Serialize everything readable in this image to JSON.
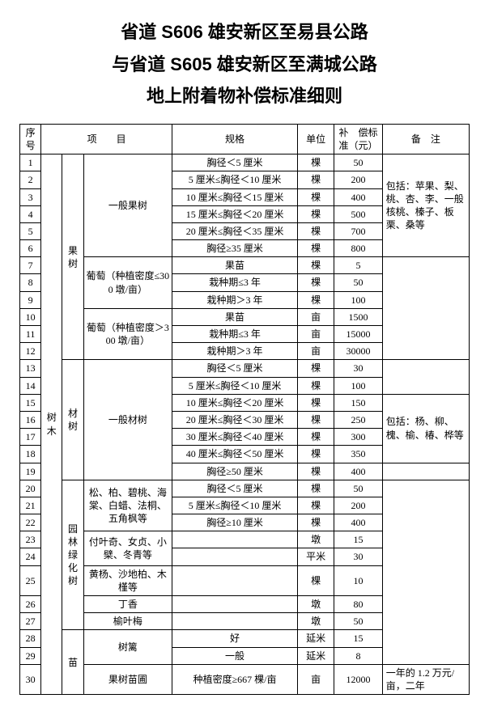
{
  "title_lines": [
    "省道 S606 雄安新区至易县公路",
    "与省道 S605 雄安新区至满城公路",
    "地上附着物补偿标准细则"
  ],
  "headers": {
    "seq": "序号",
    "item": "项　　目",
    "spec": "规格",
    "unit": "单位",
    "std": "补　偿标准（元）",
    "note": "备　注"
  },
  "cat1_tree": "树木",
  "cat2": {
    "fruit": "果树",
    "timber": "材树",
    "garden": "园林绿化树",
    "nursery": "苗"
  },
  "cat3": {
    "gen_fruit": "一般果树",
    "grape_low": "葡萄（种植密度≤300 墩/亩）",
    "grape_high": "葡萄（种植密度＞300 墩/亩）",
    "gen_timber": "一般材树",
    "pine_etc": "松、柏、碧桃、海棠、白蜡、法桐、五角枫等",
    "fuye": "付叶奇、女贞、小檗、冬青等",
    "huangyang": "黄杨、沙地柏、木槿等",
    "dingxiang": "丁香",
    "yuyemei": "榆叶梅",
    "shuli": "树篱",
    "fruit_nursery": "果树苗圃"
  },
  "notes": {
    "fruit": "包括：苹果、梨、桃、杏、李、一般核桃、榛子、板栗、桑等",
    "timber": "包括：杨、柳、槐、榆、椿、桦等",
    "nursery": "一年的 1.2 万元/亩，二年"
  },
  "rows": {
    "r1": {
      "seq": "1",
      "spec": "胸径＜5 厘米",
      "unit": "棵",
      "std": "50"
    },
    "r2": {
      "seq": "2",
      "spec": "5 厘米≤胸径＜10 厘米",
      "unit": "棵",
      "std": "200"
    },
    "r3": {
      "seq": "3",
      "spec": "10 厘米≤胸径＜15 厘米",
      "unit": "棵",
      "std": "400"
    },
    "r4": {
      "seq": "4",
      "spec": "15 厘米≤胸径＜20 厘米",
      "unit": "棵",
      "std": "500"
    },
    "r5": {
      "seq": "5",
      "spec": "20 厘米≤胸径＜35 厘米",
      "unit": "棵",
      "std": "700"
    },
    "r6": {
      "seq": "6",
      "spec": "胸径≥35 厘米",
      "unit": "棵",
      "std": "800"
    },
    "r7": {
      "seq": "7",
      "spec": "果苗",
      "unit": "棵",
      "std": "5"
    },
    "r8": {
      "seq": "8",
      "spec": "栽种期≤3 年",
      "unit": "棵",
      "std": "50"
    },
    "r9": {
      "seq": "9",
      "spec": "栽种期＞3 年",
      "unit": "棵",
      "std": "100"
    },
    "r10": {
      "seq": "10",
      "spec": "果苗",
      "unit": "亩",
      "std": "1500"
    },
    "r11": {
      "seq": "11",
      "spec": "栽种期≤3 年",
      "unit": "亩",
      "std": "15000"
    },
    "r12": {
      "seq": "12",
      "spec": "栽种期＞3 年",
      "unit": "亩",
      "std": "30000"
    },
    "r13": {
      "seq": "13",
      "spec": "胸径＜5 厘米",
      "unit": "棵",
      "std": "30"
    },
    "r14": {
      "seq": "14",
      "spec": "5 厘米≤胸径＜10 厘米",
      "unit": "棵",
      "std": "100"
    },
    "r15": {
      "seq": "15",
      "spec": "10 厘米≤胸径＜20 厘米",
      "unit": "棵",
      "std": "150"
    },
    "r16": {
      "seq": "16",
      "spec": "20 厘米≤胸径＜30 厘米",
      "unit": "棵",
      "std": "250"
    },
    "r17": {
      "seq": "17",
      "spec": "30 厘米≤胸径＜40 厘米",
      "unit": "棵",
      "std": "300"
    },
    "r18": {
      "seq": "18",
      "spec": "40 厘米≤胸径＜50 厘米",
      "unit": "棵",
      "std": "350"
    },
    "r19": {
      "seq": "19",
      "spec": "胸径≥50 厘米",
      "unit": "棵",
      "std": "400"
    },
    "r20": {
      "seq": "20",
      "spec": "胸径＜5 厘米",
      "unit": "棵",
      "std": "50"
    },
    "r21": {
      "seq": "21",
      "spec": "5 厘米≤胸径＜10 厘米",
      "unit": "棵",
      "std": "200"
    },
    "r22": {
      "seq": "22",
      "spec": "胸径≥10 厘米",
      "unit": "棵",
      "std": "400"
    },
    "r23": {
      "seq": "23",
      "spec": "",
      "unit": "墩",
      "std": "15"
    },
    "r24": {
      "seq": "24",
      "spec": "",
      "unit": "平米",
      "std": "30"
    },
    "r25": {
      "seq": "25",
      "spec": "",
      "unit": "棵",
      "std": "10"
    },
    "r26": {
      "seq": "26",
      "spec": "",
      "unit": "墩",
      "std": "80"
    },
    "r27": {
      "seq": "27",
      "spec": "",
      "unit": "墩",
      "std": "50"
    },
    "r28": {
      "seq": "28",
      "spec": "好",
      "unit": "延米",
      "std": "15"
    },
    "r29": {
      "seq": "29",
      "spec": "一般",
      "unit": "延米",
      "std": "8"
    },
    "r30": {
      "seq": "30",
      "spec": "种植密度≥667 棵/亩",
      "unit": "亩",
      "std": "12000"
    }
  }
}
